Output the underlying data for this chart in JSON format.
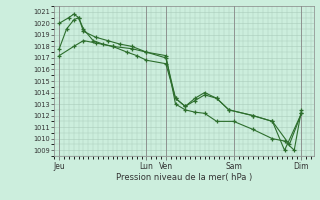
{
  "title": "Pression niveau de la mer( hPa )",
  "background_color": "#cceedd",
  "grid_color": "#aaccbb",
  "line_color": "#2d6e2d",
  "ylim": [
    1008.5,
    1021.5
  ],
  "yticks": [
    1009,
    1010,
    1011,
    1012,
    1013,
    1014,
    1015,
    1016,
    1017,
    1018,
    1019,
    1020,
    1021
  ],
  "xtick_labels": [
    "Jeu",
    "Lun",
    "Ven",
    "Sam",
    "Dim"
  ],
  "xtick_positions": [
    0.0,
    0.36,
    0.44,
    0.72,
    1.0
  ],
  "series1_x": [
    0.0,
    0.04,
    0.06,
    0.08,
    0.1,
    0.14,
    0.18,
    0.22,
    0.28,
    0.32,
    0.36,
    0.44,
    0.48,
    0.52,
    0.56,
    0.6,
    0.65,
    0.7,
    0.8,
    0.88,
    0.95,
    1.0
  ],
  "series1_y": [
    1020.0,
    1020.5,
    1020.8,
    1020.5,
    1019.5,
    1018.5,
    1018.2,
    1018.0,
    1017.5,
    1017.2,
    1016.8,
    1016.5,
    1013.5,
    1012.8,
    1013.3,
    1013.8,
    1013.5,
    1012.5,
    1012.0,
    1011.5,
    1009.5,
    1012.2
  ],
  "series2_x": [
    0.0,
    0.03,
    0.06,
    0.08,
    0.1,
    0.15,
    0.2,
    0.25,
    0.3,
    0.36,
    0.44,
    0.48,
    0.52,
    0.56,
    0.6,
    0.65,
    0.7,
    0.8,
    0.88,
    0.93,
    1.0
  ],
  "series2_y": [
    1017.8,
    1019.5,
    1020.3,
    1020.5,
    1019.3,
    1018.8,
    1018.5,
    1018.2,
    1018.0,
    1017.5,
    1017.0,
    1013.5,
    1012.8,
    1013.5,
    1014.0,
    1013.5,
    1012.5,
    1012.0,
    1011.5,
    1009.0,
    1012.2
  ],
  "series3_x": [
    0.0,
    0.06,
    0.1,
    0.15,
    0.22,
    0.3,
    0.36,
    0.44,
    0.48,
    0.52,
    0.56,
    0.6,
    0.65,
    0.72,
    0.8,
    0.88,
    0.93,
    0.97,
    1.0
  ],
  "series3_y": [
    1017.2,
    1018.0,
    1018.5,
    1018.3,
    1018.0,
    1017.8,
    1017.5,
    1017.2,
    1013.0,
    1012.5,
    1012.3,
    1012.2,
    1011.5,
    1011.5,
    1010.8,
    1010.0,
    1009.8,
    1009.0,
    1012.5
  ],
  "figsize": [
    3.2,
    2.0
  ],
  "dpi": 100
}
